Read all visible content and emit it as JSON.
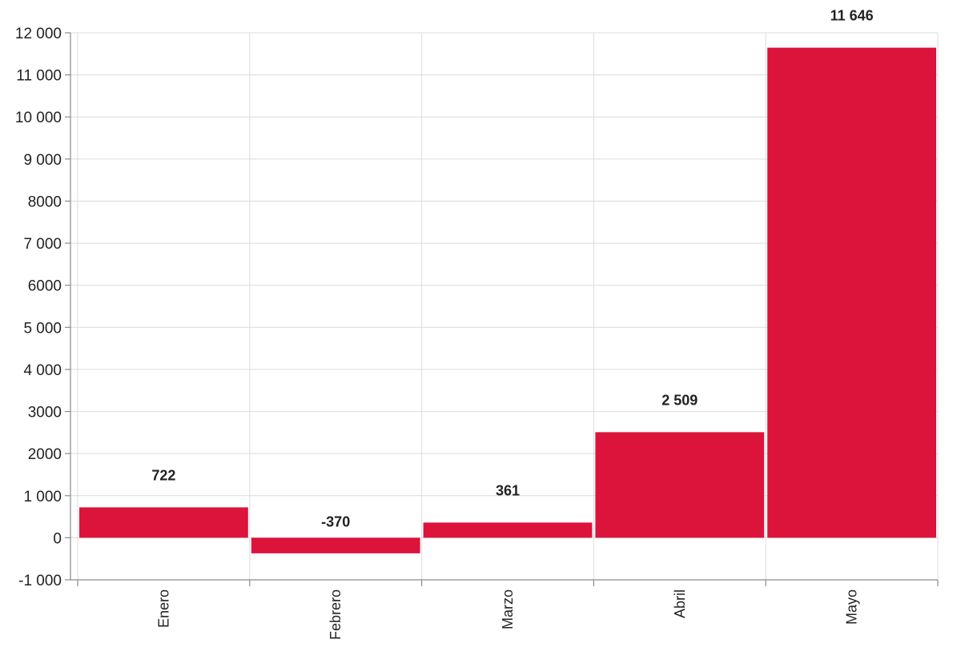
{
  "chart_data": {
    "type": "bar",
    "title": "",
    "xlabel": "",
    "ylabel": "",
    "categories": [
      "Enero",
      "Febrero",
      "Marzo",
      "Abril",
      "Mayo"
    ],
    "values": [
      722,
      -370,
      361,
      2509,
      11646
    ],
    "value_labels": [
      "722",
      "-370",
      "361",
      "2 509",
      "11 646"
    ],
    "ylim": [
      -1000,
      12000
    ],
    "y_ticks": [
      -1000,
      0,
      1000,
      2000,
      3000,
      4000,
      5000,
      6000,
      7000,
      8000,
      9000,
      10000,
      11000,
      12000
    ],
    "y_tick_labels": [
      "-1 000",
      "0",
      "1 000",
      "2000",
      "3000",
      "4 000",
      "5 000",
      "6000",
      "7 000",
      "8000",
      "9 000",
      "10 000",
      "11 000",
      "12 000"
    ],
    "grid": true,
    "legend": "none",
    "bar_color": "#DC143C"
  }
}
